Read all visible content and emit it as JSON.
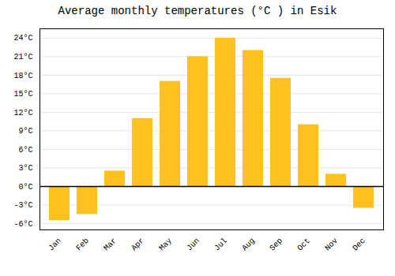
{
  "chart_data": {
    "type": "bar",
    "title": "Average monthly temperatures (°C ) in Esik",
    "categories": [
      "Jan",
      "Feb",
      "Mar",
      "Apr",
      "May",
      "Jun",
      "Jul",
      "Aug",
      "Sep",
      "Oct",
      "Nov",
      "Dec"
    ],
    "values": [
      -5.5,
      -4.5,
      2.5,
      11.0,
      17.0,
      21.0,
      24.0,
      22.0,
      17.5,
      10.0,
      2.0,
      -3.5
    ],
    "color": "#FFC020",
    "ylim": [
      -7,
      25.5
    ],
    "yticks": [
      {
        "value": -6,
        "label": "-6°C"
      },
      {
        "value": -3,
        "label": "-3°C"
      },
      {
        "value": 0,
        "label": "0°C"
      },
      {
        "value": 3,
        "label": "3°C"
      },
      {
        "value": 6,
        "label": "6°C"
      },
      {
        "value": 9,
        "label": "9°C"
      },
      {
        "value": 12,
        "label": "12°C"
      },
      {
        "value": 15,
        "label": "15°C"
      },
      {
        "value": 18,
        "label": "18°C"
      },
      {
        "value": 21,
        "label": "21°C"
      },
      {
        "value": 24,
        "label": "24°C"
      }
    ],
    "grid": true
  }
}
